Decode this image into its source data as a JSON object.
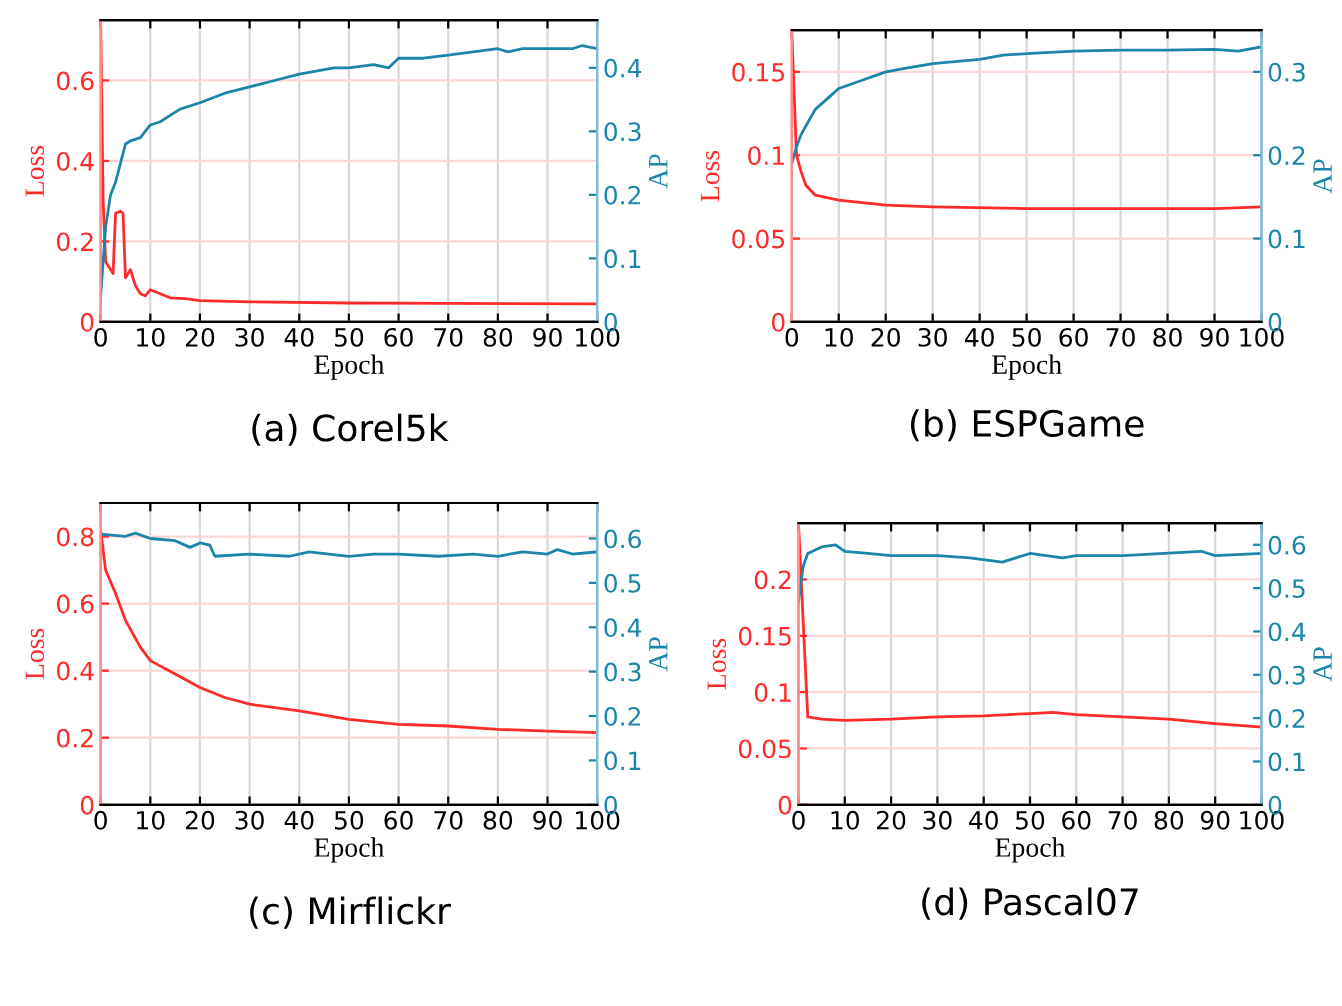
{
  "chart_data": [
    {
      "type": "line",
      "title": "(a) Corel5k",
      "xlabel": "Epoch",
      "ylabel": "Loss",
      "y2label": "AP",
      "xlim": [
        0,
        100
      ],
      "xticks": [
        0,
        10,
        20,
        30,
        40,
        50,
        60,
        70,
        80,
        90,
        100
      ],
      "ylim": [
        0,
        0.75
      ],
      "yticks": [
        0,
        0.2,
        0.4,
        0.6
      ],
      "y2lim": [
        0,
        0.475
      ],
      "y2ticks": [
        0,
        0.1,
        0.2,
        0.3,
        0.4
      ],
      "grid": true,
      "series": [
        {
          "color": "#ff2a2a",
          "x": [
            0,
            0.5,
            1,
            2,
            2.5,
            3,
            4,
            4.5,
            5,
            6,
            7,
            8,
            9,
            10,
            12,
            14,
            17,
            20,
            30,
            50,
            70,
            100
          ],
          "values": [
            0.75,
            0.3,
            0.15,
            0.13,
            0.12,
            0.27,
            0.275,
            0.27,
            0.11,
            0.13,
            0.09,
            0.07,
            0.065,
            0.08,
            0.07,
            0.06,
            0.058,
            0.053,
            0.05,
            0.047,
            0.046,
            0.045
          ]
        },
        {
          "color": "#1b86a8",
          "axis": "y2",
          "x": [
            0,
            1,
            2,
            3,
            4,
            5,
            6,
            8,
            10,
            12,
            14,
            16,
            20,
            25,
            30,
            35,
            40,
            47,
            50,
            55,
            58,
            60,
            65,
            70,
            75,
            80,
            82,
            85,
            90,
            95,
            97,
            100
          ],
          "values": [
            0.04,
            0.15,
            0.2,
            0.22,
            0.25,
            0.28,
            0.285,
            0.29,
            0.31,
            0.315,
            0.325,
            0.335,
            0.345,
            0.36,
            0.37,
            0.38,
            0.39,
            0.4,
            0.4,
            0.405,
            0.4,
            0.415,
            0.415,
            0.42,
            0.425,
            0.43,
            0.425,
            0.43,
            0.43,
            0.43,
            0.435,
            0.43
          ]
        }
      ]
    },
    {
      "type": "line",
      "title": "(b) ESPGame",
      "xlabel": "Epoch",
      "ylabel": "Loss",
      "y2label": "AP",
      "xlim": [
        0,
        100
      ],
      "xticks": [
        0,
        10,
        20,
        30,
        40,
        50,
        60,
        70,
        80,
        90,
        100
      ],
      "ylim": [
        0,
        0.175
      ],
      "yticks": [
        0,
        0.05,
        0.1,
        0.15
      ],
      "y2lim": [
        0,
        0.35
      ],
      "y2ticks": [
        0,
        0.1,
        0.2,
        0.3
      ],
      "grid": true,
      "series": [
        {
          "color": "#ff2a2a",
          "x": [
            0,
            1,
            2,
            3,
            5,
            10,
            20,
            30,
            50,
            70,
            90,
            100
          ],
          "values": [
            0.175,
            0.1,
            0.09,
            0.082,
            0.076,
            0.073,
            0.07,
            0.069,
            0.068,
            0.068,
            0.068,
            0.069
          ]
        },
        {
          "color": "#1b86a8",
          "axis": "y2",
          "x": [
            0,
            1,
            2,
            3,
            5,
            8,
            10,
            15,
            20,
            25,
            30,
            40,
            45,
            50,
            60,
            70,
            80,
            90,
            95,
            100
          ],
          "values": [
            0.19,
            0.21,
            0.225,
            0.235,
            0.255,
            0.27,
            0.28,
            0.29,
            0.3,
            0.305,
            0.31,
            0.315,
            0.32,
            0.322,
            0.325,
            0.326,
            0.326,
            0.327,
            0.325,
            0.33
          ]
        }
      ]
    },
    {
      "type": "line",
      "title": "(c) Mirflickr",
      "xlabel": "Epoch",
      "ylabel": "Loss",
      "y2label": "AP",
      "xlim": [
        0,
        100
      ],
      "xticks": [
        0,
        10,
        20,
        30,
        40,
        50,
        60,
        70,
        80,
        90,
        100
      ],
      "ylim": [
        0,
        0.9
      ],
      "yticks": [
        0,
        0.2,
        0.4,
        0.6,
        0.8
      ],
      "y2lim": [
        0,
        0.68
      ],
      "y2ticks": [
        0,
        0.1,
        0.2,
        0.3,
        0.4,
        0.5,
        0.6
      ],
      "grid": true,
      "series": [
        {
          "color": "#ff2a2a",
          "x": [
            0,
            1,
            3,
            5,
            8,
            10,
            15,
            20,
            25,
            30,
            40,
            50,
            60,
            70,
            80,
            90,
            100
          ],
          "values": [
            0.82,
            0.7,
            0.63,
            0.55,
            0.47,
            0.43,
            0.39,
            0.35,
            0.32,
            0.3,
            0.28,
            0.255,
            0.24,
            0.235,
            0.225,
            0.22,
            0.215
          ]
        },
        {
          "color": "#1b86a8",
          "axis": "y2",
          "x": [
            0,
            5,
            7,
            10,
            15,
            18,
            20,
            22,
            23,
            30,
            38,
            42,
            50,
            55,
            60,
            68,
            75,
            80,
            85,
            90,
            92,
            95,
            100
          ],
          "values": [
            0.61,
            0.605,
            0.612,
            0.6,
            0.595,
            0.58,
            0.59,
            0.585,
            0.56,
            0.565,
            0.56,
            0.57,
            0.56,
            0.565,
            0.565,
            0.56,
            0.565,
            0.56,
            0.57,
            0.565,
            0.575,
            0.565,
            0.57
          ]
        }
      ]
    },
    {
      "type": "line",
      "title": "(d) Pascal07",
      "xlabel": "Epoch",
      "ylabel": "Loss",
      "y2label": "AP",
      "xlim": [
        0,
        100
      ],
      "xticks": [
        0,
        10,
        20,
        30,
        40,
        50,
        60,
        70,
        80,
        90,
        100
      ],
      "ylim": [
        0,
        0.25
      ],
      "yticks": [
        0,
        0.05,
        0.1,
        0.15,
        0.2
      ],
      "y2lim": [
        0,
        0.65
      ],
      "y2ticks": [
        0,
        0.1,
        0.2,
        0.3,
        0.4,
        0.5,
        0.6
      ],
      "grid": true,
      "series": [
        {
          "color": "#ff2a2a",
          "x": [
            0,
            2,
            5,
            10,
            20,
            30,
            40,
            50,
            55,
            60,
            70,
            80,
            90,
            100
          ],
          "values": [
            0.25,
            0.078,
            0.076,
            0.075,
            0.076,
            0.078,
            0.079,
            0.081,
            0.082,
            0.08,
            0.078,
            0.076,
            0.072,
            0.069
          ]
        },
        {
          "color": "#1b86a8",
          "axis": "y2",
          "x": [
            0,
            1,
            2,
            5,
            8,
            10,
            15,
            20,
            30,
            37,
            44,
            50,
            57,
            60,
            70,
            87,
            90,
            100
          ],
          "values": [
            0.47,
            0.55,
            0.58,
            0.595,
            0.6,
            0.585,
            0.58,
            0.575,
            0.575,
            0.57,
            0.56,
            0.58,
            0.57,
            0.575,
            0.575,
            0.585,
            0.575,
            0.58
          ]
        }
      ]
    }
  ]
}
